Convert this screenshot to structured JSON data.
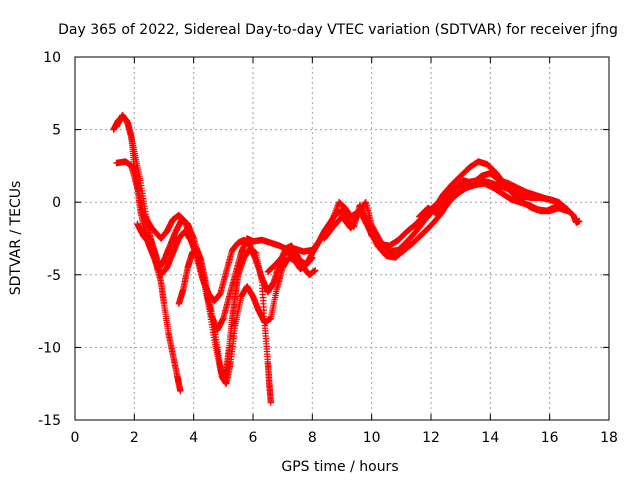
{
  "chart_data": {
    "type": "scatter",
    "title": "Day 365 of 2022, Sidereal Day-to-day VTEC variation (SDTVAR) for receiver jfng",
    "xlabel": "GPS time / hours",
    "ylabel": "SDTVAR / TECUs",
    "xlim": [
      0,
      18
    ],
    "ylim": [
      -15,
      10
    ],
    "x_ticks": [
      0,
      2,
      4,
      6,
      8,
      10,
      12,
      14,
      16,
      18
    ],
    "y_ticks": [
      -15,
      -10,
      -5,
      0,
      5,
      10
    ],
    "x_tick_labels": [
      "0",
      "2",
      "4",
      "6",
      "8",
      "10",
      "12",
      "14",
      "16",
      "18"
    ],
    "y_tick_labels": [
      "-15",
      "-10",
      "-5",
      "0",
      "5",
      "10"
    ],
    "grid": true,
    "marker": "+",
    "color": "#ff0000",
    "series": [
      {
        "name": "arc-1",
        "points": [
          [
            1.3,
            5.0
          ],
          [
            1.45,
            5.6
          ],
          [
            1.6,
            5.9
          ],
          [
            1.75,
            5.6
          ],
          [
            1.9,
            4.5
          ],
          [
            2.0,
            2.5
          ],
          [
            2.1,
            1.2
          ],
          [
            2.2,
            -0.5
          ],
          [
            2.35,
            -2.0
          ],
          [
            2.5,
            -3.0
          ],
          [
            2.7,
            -4.0
          ],
          [
            2.9,
            -5.5
          ],
          [
            3.0,
            -7.0
          ],
          [
            3.15,
            -9.0
          ],
          [
            3.3,
            -10.5
          ],
          [
            3.45,
            -12.0
          ],
          [
            3.55,
            -13.0
          ]
        ]
      },
      {
        "name": "arc-2",
        "points": [
          [
            1.4,
            5.2
          ],
          [
            1.6,
            6.0
          ],
          [
            1.8,
            5.4
          ],
          [
            2.0,
            3.5
          ],
          [
            2.2,
            1.5
          ],
          [
            2.4,
            -1.0
          ],
          [
            2.55,
            -2.5
          ],
          [
            2.7,
            -3.5
          ],
          [
            2.85,
            -4.5
          ],
          [
            3.0,
            -4.0
          ],
          [
            3.2,
            -3.0
          ],
          [
            3.4,
            -2.0
          ],
          [
            3.6,
            -1.2
          ],
          [
            3.8,
            -1.5
          ],
          [
            4.0,
            -2.5
          ],
          [
            4.2,
            -4.0
          ],
          [
            4.4,
            -6.0
          ],
          [
            4.6,
            -7.8
          ],
          [
            4.8,
            -8.8
          ],
          [
            5.0,
            -8.0
          ],
          [
            5.2,
            -6.5
          ],
          [
            5.4,
            -5.0
          ],
          [
            5.6,
            -3.5
          ],
          [
            5.8,
            -2.5
          ],
          [
            6.0,
            -2.7
          ]
        ]
      },
      {
        "name": "arc-3",
        "points": [
          [
            1.4,
            2.7
          ],
          [
            1.7,
            2.8
          ],
          [
            1.9,
            2.5
          ],
          [
            2.1,
            1.0
          ],
          [
            2.3,
            -0.8
          ],
          [
            2.6,
            -1.8
          ],
          [
            2.9,
            -2.5
          ],
          [
            3.1,
            -2.0
          ],
          [
            3.3,
            -1.2
          ],
          [
            3.5,
            -0.9
          ],
          [
            3.7,
            -1.3
          ],
          [
            3.9,
            -2.5
          ],
          [
            4.1,
            -3.8
          ],
          [
            4.3,
            -5.3
          ],
          [
            4.5,
            -6.3
          ],
          [
            4.7,
            -6.8
          ],
          [
            4.9,
            -6.3
          ],
          [
            5.1,
            -4.8
          ],
          [
            5.3,
            -3.3
          ],
          [
            5.5,
            -2.8
          ],
          [
            5.7,
            -2.6
          ],
          [
            5.9,
            -3.0
          ],
          [
            6.1,
            -4.0
          ],
          [
            6.3,
            -5.2
          ],
          [
            6.5,
            -6.2
          ],
          [
            6.7,
            -5.5
          ],
          [
            6.9,
            -4.2
          ],
          [
            7.1,
            -3.2
          ],
          [
            7.3,
            -3.0
          ],
          [
            7.5,
            -3.7
          ],
          [
            7.7,
            -4.5
          ],
          [
            7.9,
            -5.0
          ],
          [
            8.1,
            -4.7
          ]
        ]
      },
      {
        "name": "arc-4",
        "points": [
          [
            2.1,
            -1.5
          ],
          [
            2.3,
            -2.3
          ],
          [
            2.5,
            -2.8
          ],
          [
            2.7,
            -4.0
          ],
          [
            2.9,
            -5.0
          ],
          [
            3.1,
            -4.5
          ],
          [
            3.3,
            -3.5
          ],
          [
            3.5,
            -2.5
          ],
          [
            3.7,
            -2.0
          ],
          [
            3.9,
            -2.6
          ],
          [
            4.1,
            -3.5
          ],
          [
            4.3,
            -5.0
          ],
          [
            4.5,
            -7.0
          ],
          [
            4.7,
            -9.5
          ],
          [
            4.9,
            -11.5
          ],
          [
            5.0,
            -12.2
          ],
          [
            5.1,
            -11.5
          ],
          [
            5.2,
            -10.0
          ],
          [
            5.3,
            -8.0
          ],
          [
            5.4,
            -6.5
          ],
          [
            5.5,
            -5.0
          ],
          [
            5.7,
            -3.8
          ],
          [
            5.9,
            -3.2
          ],
          [
            6.1,
            -3.5
          ],
          [
            6.3,
            -5.5
          ],
          [
            6.4,
            -8.5
          ],
          [
            6.5,
            -11.0
          ],
          [
            6.55,
            -12.5
          ],
          [
            6.6,
            -13.8
          ]
        ]
      },
      {
        "name": "arc-5",
        "points": [
          [
            3.5,
            -7.0
          ],
          [
            3.65,
            -6.0
          ],
          [
            3.8,
            -4.5
          ],
          [
            3.95,
            -3.5
          ],
          [
            4.1,
            -3.2
          ],
          [
            4.25,
            -4.0
          ],
          [
            4.4,
            -5.5
          ],
          [
            4.6,
            -7.5
          ],
          [
            4.8,
            -10.0
          ],
          [
            4.95,
            -12.0
          ],
          [
            5.1,
            -12.5
          ],
          [
            5.25,
            -11.0
          ],
          [
            5.4,
            -8.5
          ],
          [
            5.6,
            -6.5
          ],
          [
            5.8,
            -5.8
          ],
          [
            6.0,
            -6.5
          ],
          [
            6.2,
            -7.5
          ],
          [
            6.4,
            -8.3
          ],
          [
            6.6,
            -8.0
          ],
          [
            6.8,
            -6.0
          ],
          [
            7.0,
            -4.5
          ],
          [
            7.2,
            -3.8
          ],
          [
            7.4,
            -4.0
          ],
          [
            7.6,
            -4.6
          ],
          [
            7.8,
            -4.3
          ],
          [
            8.0,
            -3.8
          ]
        ]
      },
      {
        "name": "arc-6",
        "points": [
          [
            5.8,
            -2.8
          ],
          [
            6.0,
            -2.7
          ],
          [
            6.3,
            -2.6
          ],
          [
            6.6,
            -2.8
          ],
          [
            6.9,
            -3.0
          ],
          [
            7.2,
            -3.3
          ],
          [
            7.5,
            -3.9
          ],
          [
            7.8,
            -4.3
          ],
          [
            8.0,
            -3.5
          ],
          [
            8.2,
            -2.8
          ],
          [
            8.4,
            -2.0
          ],
          [
            8.6,
            -1.4
          ],
          [
            8.8,
            -0.8
          ],
          [
            9.0,
            -0.6
          ],
          [
            9.2,
            -1.2
          ],
          [
            9.4,
            -1.7
          ],
          [
            9.6,
            -0.2
          ],
          [
            9.8,
            -1.2
          ],
          [
            10.0,
            -2.3
          ],
          [
            10.3,
            -2.9
          ],
          [
            10.6,
            -3.0
          ],
          [
            10.9,
            -2.6
          ],
          [
            11.2,
            -2.0
          ],
          [
            11.5,
            -1.5
          ],
          [
            11.8,
            -0.8
          ],
          [
            12.1,
            -0.3
          ],
          [
            12.4,
            0.3
          ],
          [
            12.7,
            0.8
          ],
          [
            13.0,
            1.2
          ],
          [
            13.3,
            1.4
          ],
          [
            13.6,
            1.5
          ],
          [
            13.9,
            1.4
          ],
          [
            14.2,
            1.2
          ],
          [
            14.5,
            1.0
          ],
          [
            14.8,
            0.7
          ],
          [
            15.1,
            0.4
          ],
          [
            15.4,
            0.3
          ],
          [
            15.7,
            0.3
          ],
          [
            16.0,
            0.2
          ],
          [
            16.3,
            0.0
          ],
          [
            16.6,
            -0.5
          ]
        ]
      },
      {
        "name": "arc-7",
        "points": [
          [
            6.5,
            -4.8
          ],
          [
            6.8,
            -4.2
          ],
          [
            7.1,
            -3.5
          ],
          [
            7.4,
            -3.2
          ],
          [
            7.7,
            -3.4
          ],
          [
            8.0,
            -3.3
          ],
          [
            8.3,
            -2.5
          ],
          [
            8.6,
            -1.6
          ],
          [
            8.9,
            0.0
          ],
          [
            9.1,
            -0.4
          ],
          [
            9.3,
            -1.0
          ],
          [
            9.6,
            -0.6
          ],
          [
            9.8,
            0.0
          ],
          [
            10.0,
            -1.6
          ],
          [
            10.3,
            -2.7
          ],
          [
            10.6,
            -3.4
          ],
          [
            10.9,
            -3.3
          ],
          [
            11.2,
            -2.7
          ],
          [
            11.5,
            -2.0
          ],
          [
            11.8,
            -1.2
          ],
          [
            12.1,
            -0.5
          ],
          [
            12.4,
            0.5
          ],
          [
            12.7,
            1.2
          ],
          [
            13.0,
            1.8
          ],
          [
            13.3,
            2.4
          ],
          [
            13.6,
            2.8
          ],
          [
            13.9,
            2.6
          ],
          [
            14.2,
            2.0
          ],
          [
            14.5,
            1.2
          ],
          [
            14.8,
            0.5
          ],
          [
            15.1,
            0.0
          ],
          [
            15.4,
            -0.4
          ],
          [
            15.7,
            -0.6
          ],
          [
            16.0,
            -0.6
          ],
          [
            16.3,
            -0.4
          ],
          [
            16.6,
            -0.6
          ]
        ]
      },
      {
        "name": "arc-8",
        "points": [
          [
            8.4,
            -2.5
          ],
          [
            8.7,
            -1.7
          ],
          [
            9.0,
            -1.0
          ],
          [
            9.3,
            -1.8
          ],
          [
            9.6,
            -0.6
          ],
          [
            9.9,
            -1.8
          ],
          [
            10.2,
            -3.0
          ],
          [
            10.5,
            -3.7
          ],
          [
            10.8,
            -3.8
          ],
          [
            11.1,
            -3.3
          ],
          [
            11.4,
            -2.8
          ],
          [
            11.7,
            -2.2
          ],
          [
            12.0,
            -1.6
          ],
          [
            12.3,
            -0.9
          ],
          [
            12.6,
            0.0
          ],
          [
            12.9,
            0.6
          ],
          [
            13.2,
            1.0
          ],
          [
            13.5,
            1.2
          ],
          [
            13.8,
            1.3
          ],
          [
            14.1,
            1.0
          ],
          [
            14.4,
            0.6
          ],
          [
            14.7,
            0.2
          ],
          [
            15.0,
            0.0
          ],
          [
            15.3,
            -0.2
          ],
          [
            15.6,
            -0.5
          ],
          [
            15.9,
            -0.6
          ],
          [
            16.2,
            -0.3
          ],
          [
            16.5,
            -0.4
          ],
          [
            16.8,
            -0.9
          ],
          [
            16.9,
            -1.4
          ],
          [
            17.0,
            -1.3
          ]
        ]
      },
      {
        "name": "arc-9",
        "points": [
          [
            11.6,
            -1.0
          ],
          [
            11.9,
            -0.4
          ],
          [
            12.2,
            -0.8
          ],
          [
            12.5,
            0.2
          ],
          [
            12.8,
            0.9
          ],
          [
            13.1,
            1.5
          ],
          [
            13.4,
            1.3
          ],
          [
            13.7,
            1.8
          ],
          [
            14.0,
            2.0
          ],
          [
            14.3,
            1.5
          ],
          [
            14.6,
            1.3
          ],
          [
            14.9,
            1.0
          ],
          [
            15.2,
            0.7
          ],
          [
            15.5,
            0.5
          ],
          [
            15.8,
            0.3
          ],
          [
            16.1,
            0.1
          ]
        ]
      }
    ]
  }
}
